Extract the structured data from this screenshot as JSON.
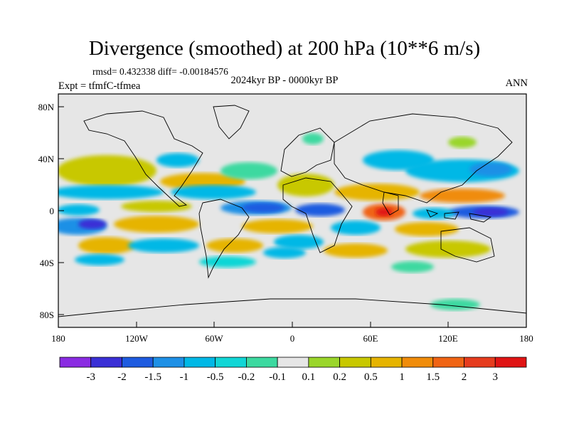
{
  "title": "Divergence (smoothed) at 200 hPa (10**6 m/s)",
  "stats_text": "rmsd= 0.432338 diff= -0.00184576",
  "expt_text": "Expt = tfmfC-tfmea",
  "period_text": "2024kyr BP - 0000kyr BP",
  "season_text": "ANN",
  "map": {
    "lon_ticks": [
      "180",
      "120W",
      "60W",
      "0",
      "60E",
      "120E",
      "180"
    ],
    "lat_ticks": [
      "80N",
      "40N",
      "0",
      "40S",
      "80S"
    ]
  },
  "colorbar": {
    "labels": [
      "-3",
      "-2",
      "-1.5",
      "-1",
      "-0.5",
      "-0.2",
      "-0.1",
      "0.1",
      "0.2",
      "0.5",
      "1",
      "1.5",
      "2",
      "3"
    ],
    "colors": [
      "#8a2be2",
      "#3a2fd6",
      "#1e5be0",
      "#1e90e6",
      "#00b8e6",
      "#11d6d6",
      "#3cd9a0",
      "#e6e6e6",
      "#9ad62a",
      "#c8c800",
      "#e6b400",
      "#f08c0a",
      "#f06414",
      "#e63c1e",
      "#e01414"
    ]
  }
}
